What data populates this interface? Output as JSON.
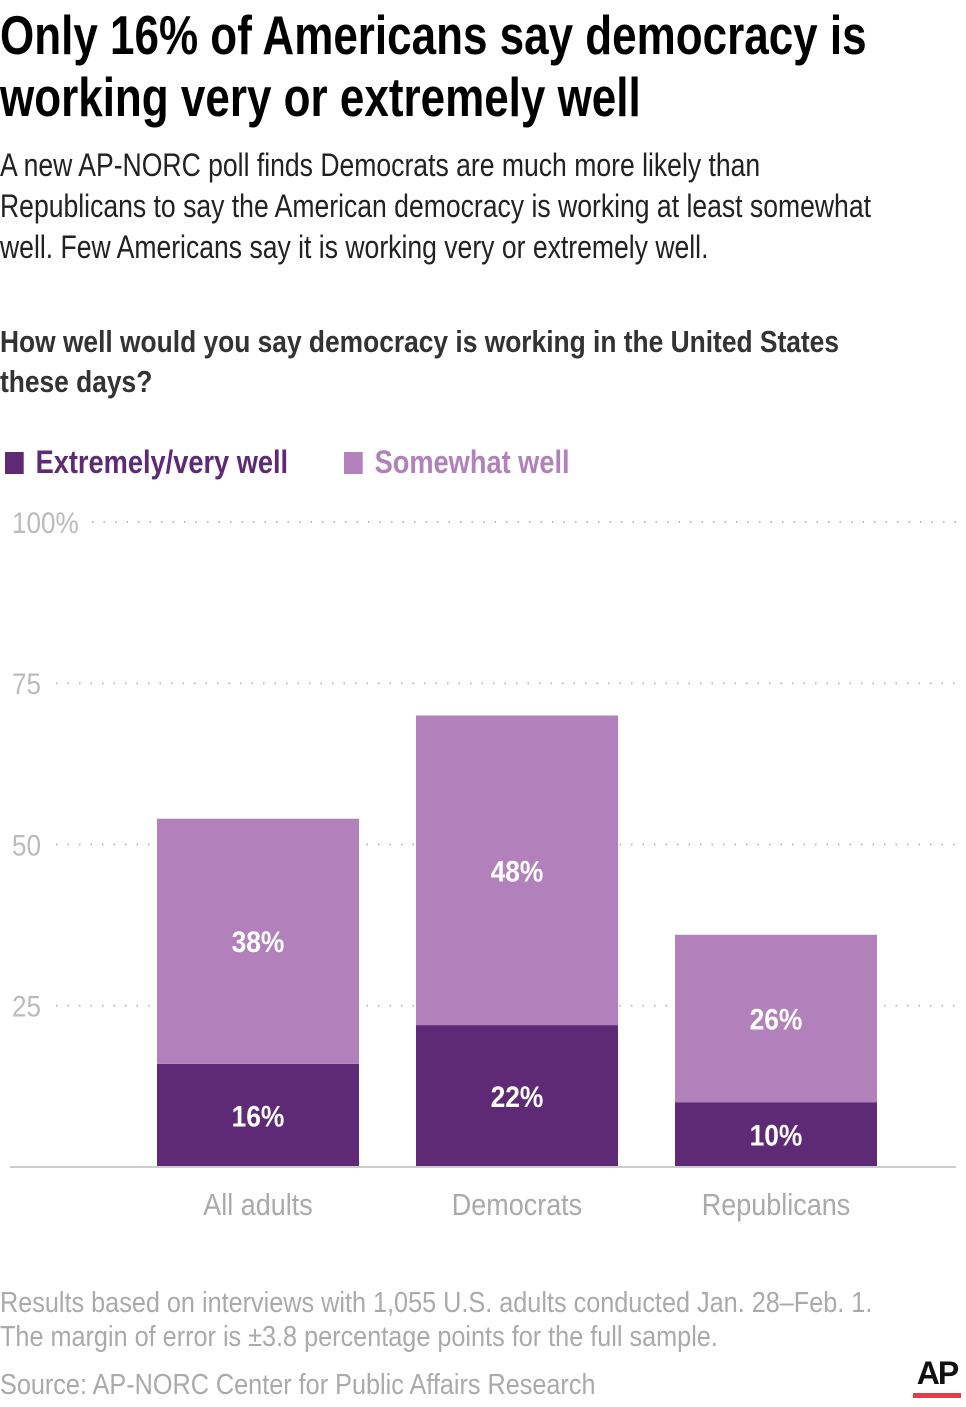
{
  "title": "Only 16% of Americans say democracy is working very or extremely well",
  "title_lines": [
    "Only 16% of Americans say democracy is",
    "working very or extremely well"
  ],
  "subtitle_lines": [
    "A new AP-NORC poll finds Democrats are much more likely than",
    "Republicans to say the American democracy is working at least somewhat",
    "well. Few Americans say it is working very or extremely well."
  ],
  "question_lines": [
    "How well would you say democracy is working in the United States",
    "these days?"
  ],
  "notes_lines": [
    "Results based on interviews with 1,055 U.S. adults conducted Jan. 28–Feb. 1.",
    "The margin of error is ±3.8 percentage points for the full sample."
  ],
  "source": "Source: AP-NORC Center for Public Affairs Research",
  "logo": "AP",
  "chart_data": {
    "type": "bar",
    "stacked": true,
    "categories": [
      "All adults",
      "Democrats",
      "Republicans"
    ],
    "series": [
      {
        "name": "Extremely/very well",
        "values": [
          16,
          22,
          10
        ],
        "labels": [
          "16%",
          "22%",
          "10%"
        ],
        "color": "#5e2a75"
      },
      {
        "name": "Somewhat well",
        "values": [
          38,
          48,
          26
        ],
        "labels": [
          "38%",
          "48%",
          "26%"
        ],
        "color": "#b281bb"
      }
    ],
    "ylim": [
      0,
      100
    ],
    "yticks": [
      25,
      50,
      75,
      100
    ],
    "ytick_labels": [
      "25",
      "50",
      "75",
      "100%"
    ],
    "grid": true,
    "legend": "top-left"
  }
}
